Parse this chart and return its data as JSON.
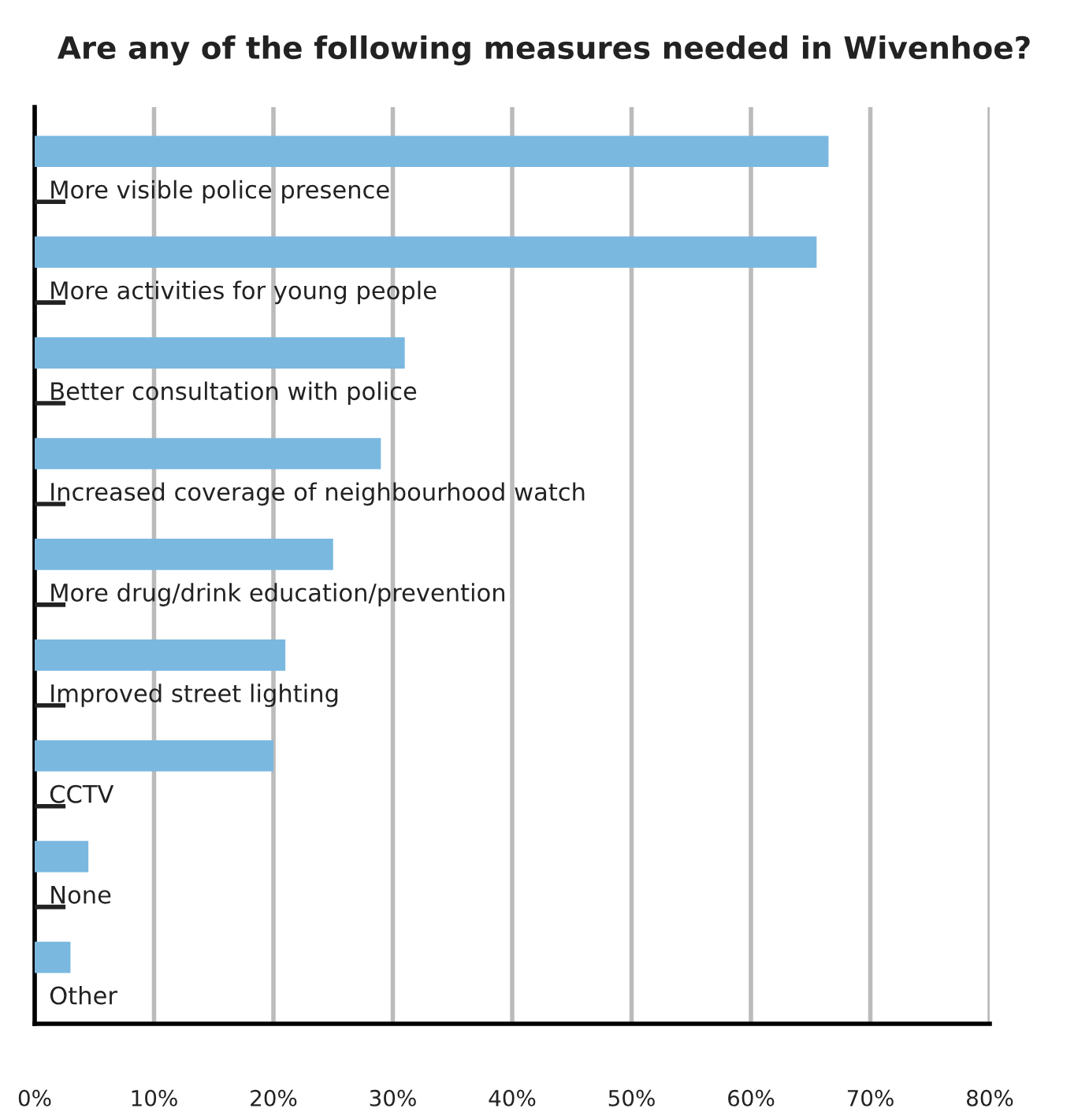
{
  "chart_data": {
    "type": "bar",
    "orientation": "horizontal",
    "title": "Are any of the following measures needed in Wivenhoe?",
    "categories": [
      "More visible police presence",
      "More activities for young people",
      "Better consultation with police",
      "Increased coverage of neighbourhood watch",
      "More drug/drink education/prevention",
      "Improved street lighting",
      "CCTV",
      "None",
      "Other"
    ],
    "values": [
      66.5,
      65.5,
      31,
      29,
      25,
      21,
      20,
      4.5,
      3
    ],
    "color": "#7ab8e0",
    "xlim": [
      0,
      80
    ],
    "xticks": [
      {
        "value": 0,
        "label": "0%"
      },
      {
        "value": 10,
        "label": "10%"
      },
      {
        "value": 20,
        "label": "20%"
      },
      {
        "value": 30,
        "label": "30%"
      },
      {
        "value": 40,
        "label": "40%"
      },
      {
        "value": 50,
        "label": "50%"
      },
      {
        "value": 60,
        "label": "60%"
      },
      {
        "value": 70,
        "label": "70%"
      },
      {
        "value": 80,
        "label": "80%"
      }
    ],
    "grid": "x"
  }
}
